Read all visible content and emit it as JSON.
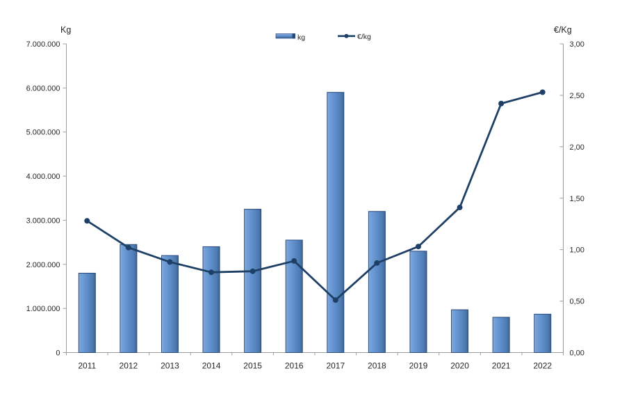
{
  "chart_data": {
    "type": "combo",
    "categories": [
      "2011",
      "2012",
      "2013",
      "2014",
      "2015",
      "2016",
      "2017",
      "2018",
      "2019",
      "2020",
      "2021",
      "2022"
    ],
    "series": [
      {
        "name": "kg",
        "type": "bar",
        "axis": "left",
        "values": [
          1800000,
          2450000,
          2200000,
          2400000,
          3250000,
          2550000,
          5900000,
          3200000,
          2300000,
          970000,
          800000,
          870000
        ]
      },
      {
        "name": "€/kg",
        "type": "line",
        "axis": "right",
        "values": [
          1.28,
          1.02,
          0.88,
          0.78,
          0.79,
          0.89,
          0.51,
          0.87,
          1.03,
          1.41,
          2.42,
          2.53
        ]
      }
    ],
    "left_axis": {
      "title": "Kg",
      "min": 0,
      "max": 7000000,
      "tick_labels": [
        "0",
        "1.000.000",
        "2.000.000",
        "3.000.000",
        "4.000.000",
        "5.000.000",
        "6.000.000",
        "7.000.000"
      ]
    },
    "right_axis": {
      "title": "€/Kg",
      "min": 0,
      "max": 3,
      "tick_labels": [
        "0,00",
        "0,50",
        "1,00",
        "1,50",
        "2,00",
        "2,50",
        "3,00"
      ]
    },
    "legend": [
      {
        "label": "kg",
        "swatch": "bar"
      },
      {
        "label": "€/kg",
        "swatch": "line-marker"
      }
    ],
    "grid": false,
    "title": ""
  },
  "colors": {
    "bar_gradient": [
      "#8DB1E0",
      "#74A0D8",
      "#5D8ECB",
      "#4C79AE",
      "#3D6294"
    ],
    "bar_border": "#2B4B7C",
    "line": "#1F4066",
    "axis": "#9C9C9C",
    "text": "#262626"
  }
}
